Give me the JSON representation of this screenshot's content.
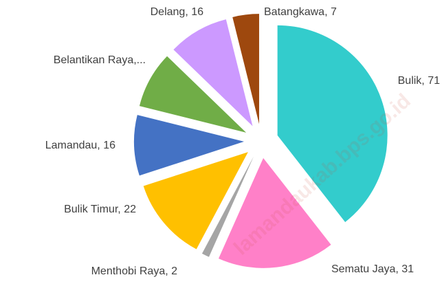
{
  "chart_data": {
    "type": "pie",
    "values": [
      71,
      31,
      2,
      22,
      16,
      15,
      16,
      7
    ],
    "value_labels": [
      "Bulik, 71",
      "Sematu Jaya, 31",
      "Menthobi Raya, 2",
      "Bulik Timur, 22",
      "Lamandau, 16",
      "Belantikan Raya,...",
      "Delang, 16",
      "Batangkawa, 7"
    ],
    "colors": [
      "#33cccc",
      "#ff80c8",
      "#a5a5a5",
      "#ffc000",
      "#4472c4",
      "#70ad47",
      "#cc99ff",
      "#9e480e"
    ],
    "watermark": "lamandaukab.bps.go.id"
  }
}
